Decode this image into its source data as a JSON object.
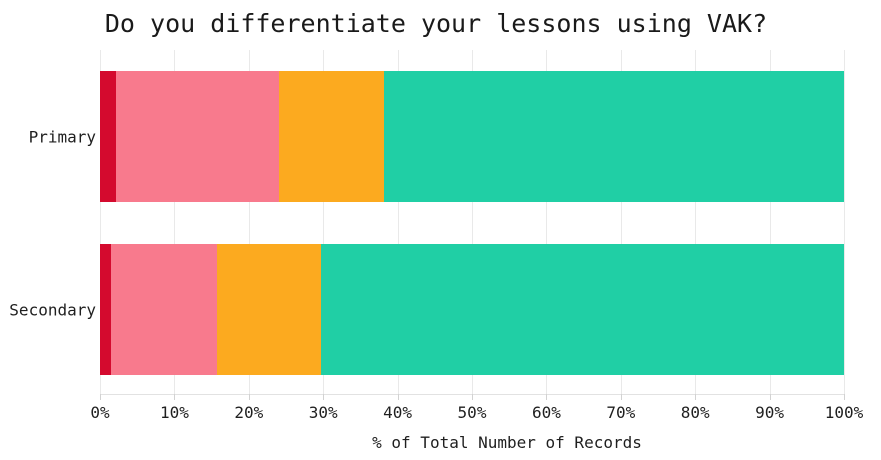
{
  "title": "Do you differentiate your lessons using VAK?",
  "chart_data": {
    "type": "bar",
    "orientation": "horizontal",
    "stacked": true,
    "stack_unit": "percent",
    "title": "Do you differentiate your lessons using VAK?",
    "categories": [
      "Primary",
      "Secondary"
    ],
    "series": [
      {
        "name": "dark-red",
        "color": "#d40a2e",
        "values": [
          2.2,
          1.5
        ]
      },
      {
        "name": "pink",
        "color": "#f87a8d",
        "values": [
          21.8,
          14.2
        ]
      },
      {
        "name": "orange",
        "color": "#fcaa1f",
        "values": [
          14.2,
          14.0
        ]
      },
      {
        "name": "teal",
        "color": "#20cfa5",
        "values": [
          61.8,
          70.3
        ]
      }
    ],
    "xlabel": "% of Total Number of Records",
    "ylabel": "",
    "xlim": [
      0,
      100
    ],
    "x_tick_values": [
      0,
      10,
      20,
      30,
      40,
      50,
      60,
      70,
      80,
      90,
      100
    ],
    "x_tick_labels": [
      "0%",
      "10%",
      "20%",
      "30%",
      "40%",
      "50%",
      "60%",
      "70%",
      "80%",
      "90%",
      "100%"
    ],
    "legend": "none",
    "grid": "vertical",
    "colors": {
      "background": "#ffffff",
      "gridline": "#e9e9e9",
      "axis_line": "#e2e2e2",
      "tick_mark": "#d2d2d2",
      "text": "#1f1f1f"
    }
  }
}
